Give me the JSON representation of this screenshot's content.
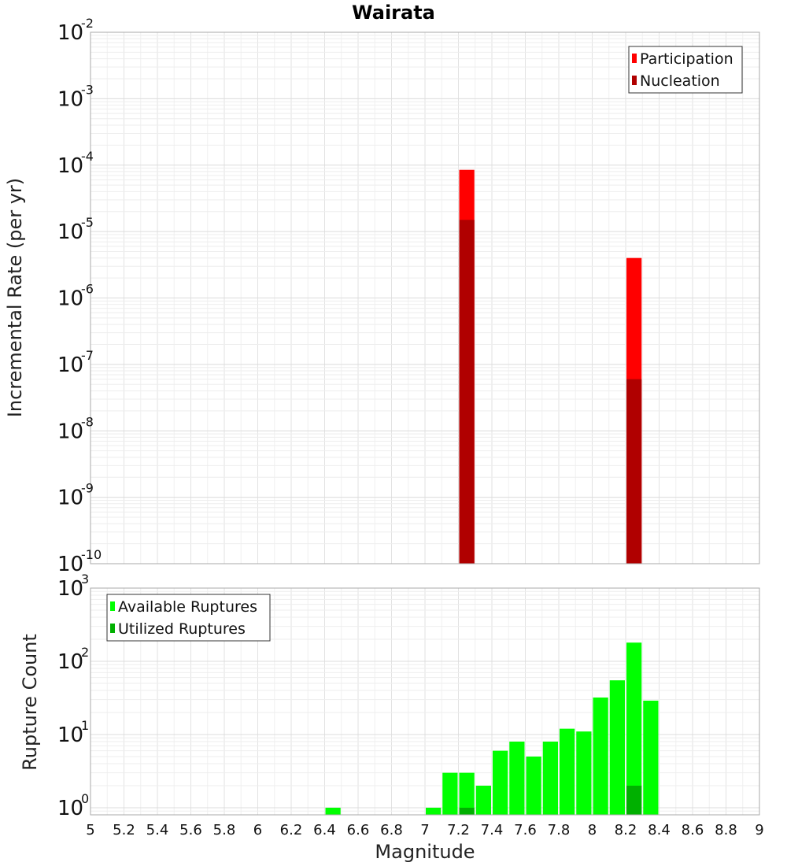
{
  "chart_data": [
    {
      "type": "bar",
      "title": "Wairata",
      "ylabel": "Incremental Rate (per yr)",
      "xlim": [
        5,
        9
      ],
      "ylim": [
        1e-10,
        0.01
      ],
      "y_scale": "log",
      "bar_width": 0.1,
      "grid": true,
      "legend_position": "top-right",
      "series": [
        {
          "name": "Participation",
          "color": "#ff0000",
          "x": [
            7.25,
            8.25
          ],
          "values": [
            8.5e-05,
            4e-06
          ]
        },
        {
          "name": "Nucleation",
          "color": "#b00000",
          "x": [
            7.25,
            8.25
          ],
          "values": [
            1.5e-05,
            6e-08
          ]
        }
      ],
      "y_ticks": [
        {
          "base": "10",
          "exp": "-10",
          "value": 1e-10
        },
        {
          "base": "10",
          "exp": "-9",
          "value": 1e-09
        },
        {
          "base": "10",
          "exp": "-8",
          "value": 1e-08
        },
        {
          "base": "10",
          "exp": "-7",
          "value": 1e-07
        },
        {
          "base": "10",
          "exp": "-6",
          "value": 1e-06
        },
        {
          "base": "10",
          "exp": "-5",
          "value": 1e-05
        },
        {
          "base": "10",
          "exp": "-4",
          "value": 0.0001
        },
        {
          "base": "10",
          "exp": "-3",
          "value": 0.001
        },
        {
          "base": "10",
          "exp": "-2",
          "value": 0.01
        }
      ]
    },
    {
      "type": "bar",
      "xlabel": "Magnitude",
      "ylabel": "Rupture Count",
      "xlim": [
        5,
        9
      ],
      "ylim": [
        0.8,
        1000
      ],
      "y_scale": "log",
      "bar_width": 0.1,
      "grid": true,
      "legend_position": "top-left",
      "series": [
        {
          "name": "Available Ruptures",
          "color": "#00ff00",
          "x": [
            6.45,
            7.05,
            7.15,
            7.25,
            7.35,
            7.45,
            7.55,
            7.65,
            7.75,
            7.85,
            7.95,
            8.05,
            8.15,
            8.25,
            8.35
          ],
          "values": [
            1,
            1,
            3,
            3,
            2,
            6,
            8,
            5,
            8,
            12,
            11,
            32,
            55,
            180,
            29
          ]
        },
        {
          "name": "Utilized Ruptures",
          "color": "#00b000",
          "x": [
            7.25,
            8.25
          ],
          "values": [
            1,
            2
          ]
        }
      ],
      "x_ticks": [
        "5",
        "5.2",
        "5.4",
        "5.6",
        "5.8",
        "6",
        "6.2",
        "6.4",
        "6.6",
        "6.8",
        "7",
        "7.2",
        "7.4",
        "7.6",
        "7.8",
        "8",
        "8.2",
        "8.4",
        "8.6",
        "8.8",
        "9"
      ],
      "y_ticks": [
        {
          "base": "10",
          "exp": "0",
          "value": 1
        },
        {
          "base": "10",
          "exp": "1",
          "value": 10
        },
        {
          "base": "10",
          "exp": "2",
          "value": 100
        },
        {
          "base": "10",
          "exp": "3",
          "value": 1000
        }
      ]
    }
  ]
}
